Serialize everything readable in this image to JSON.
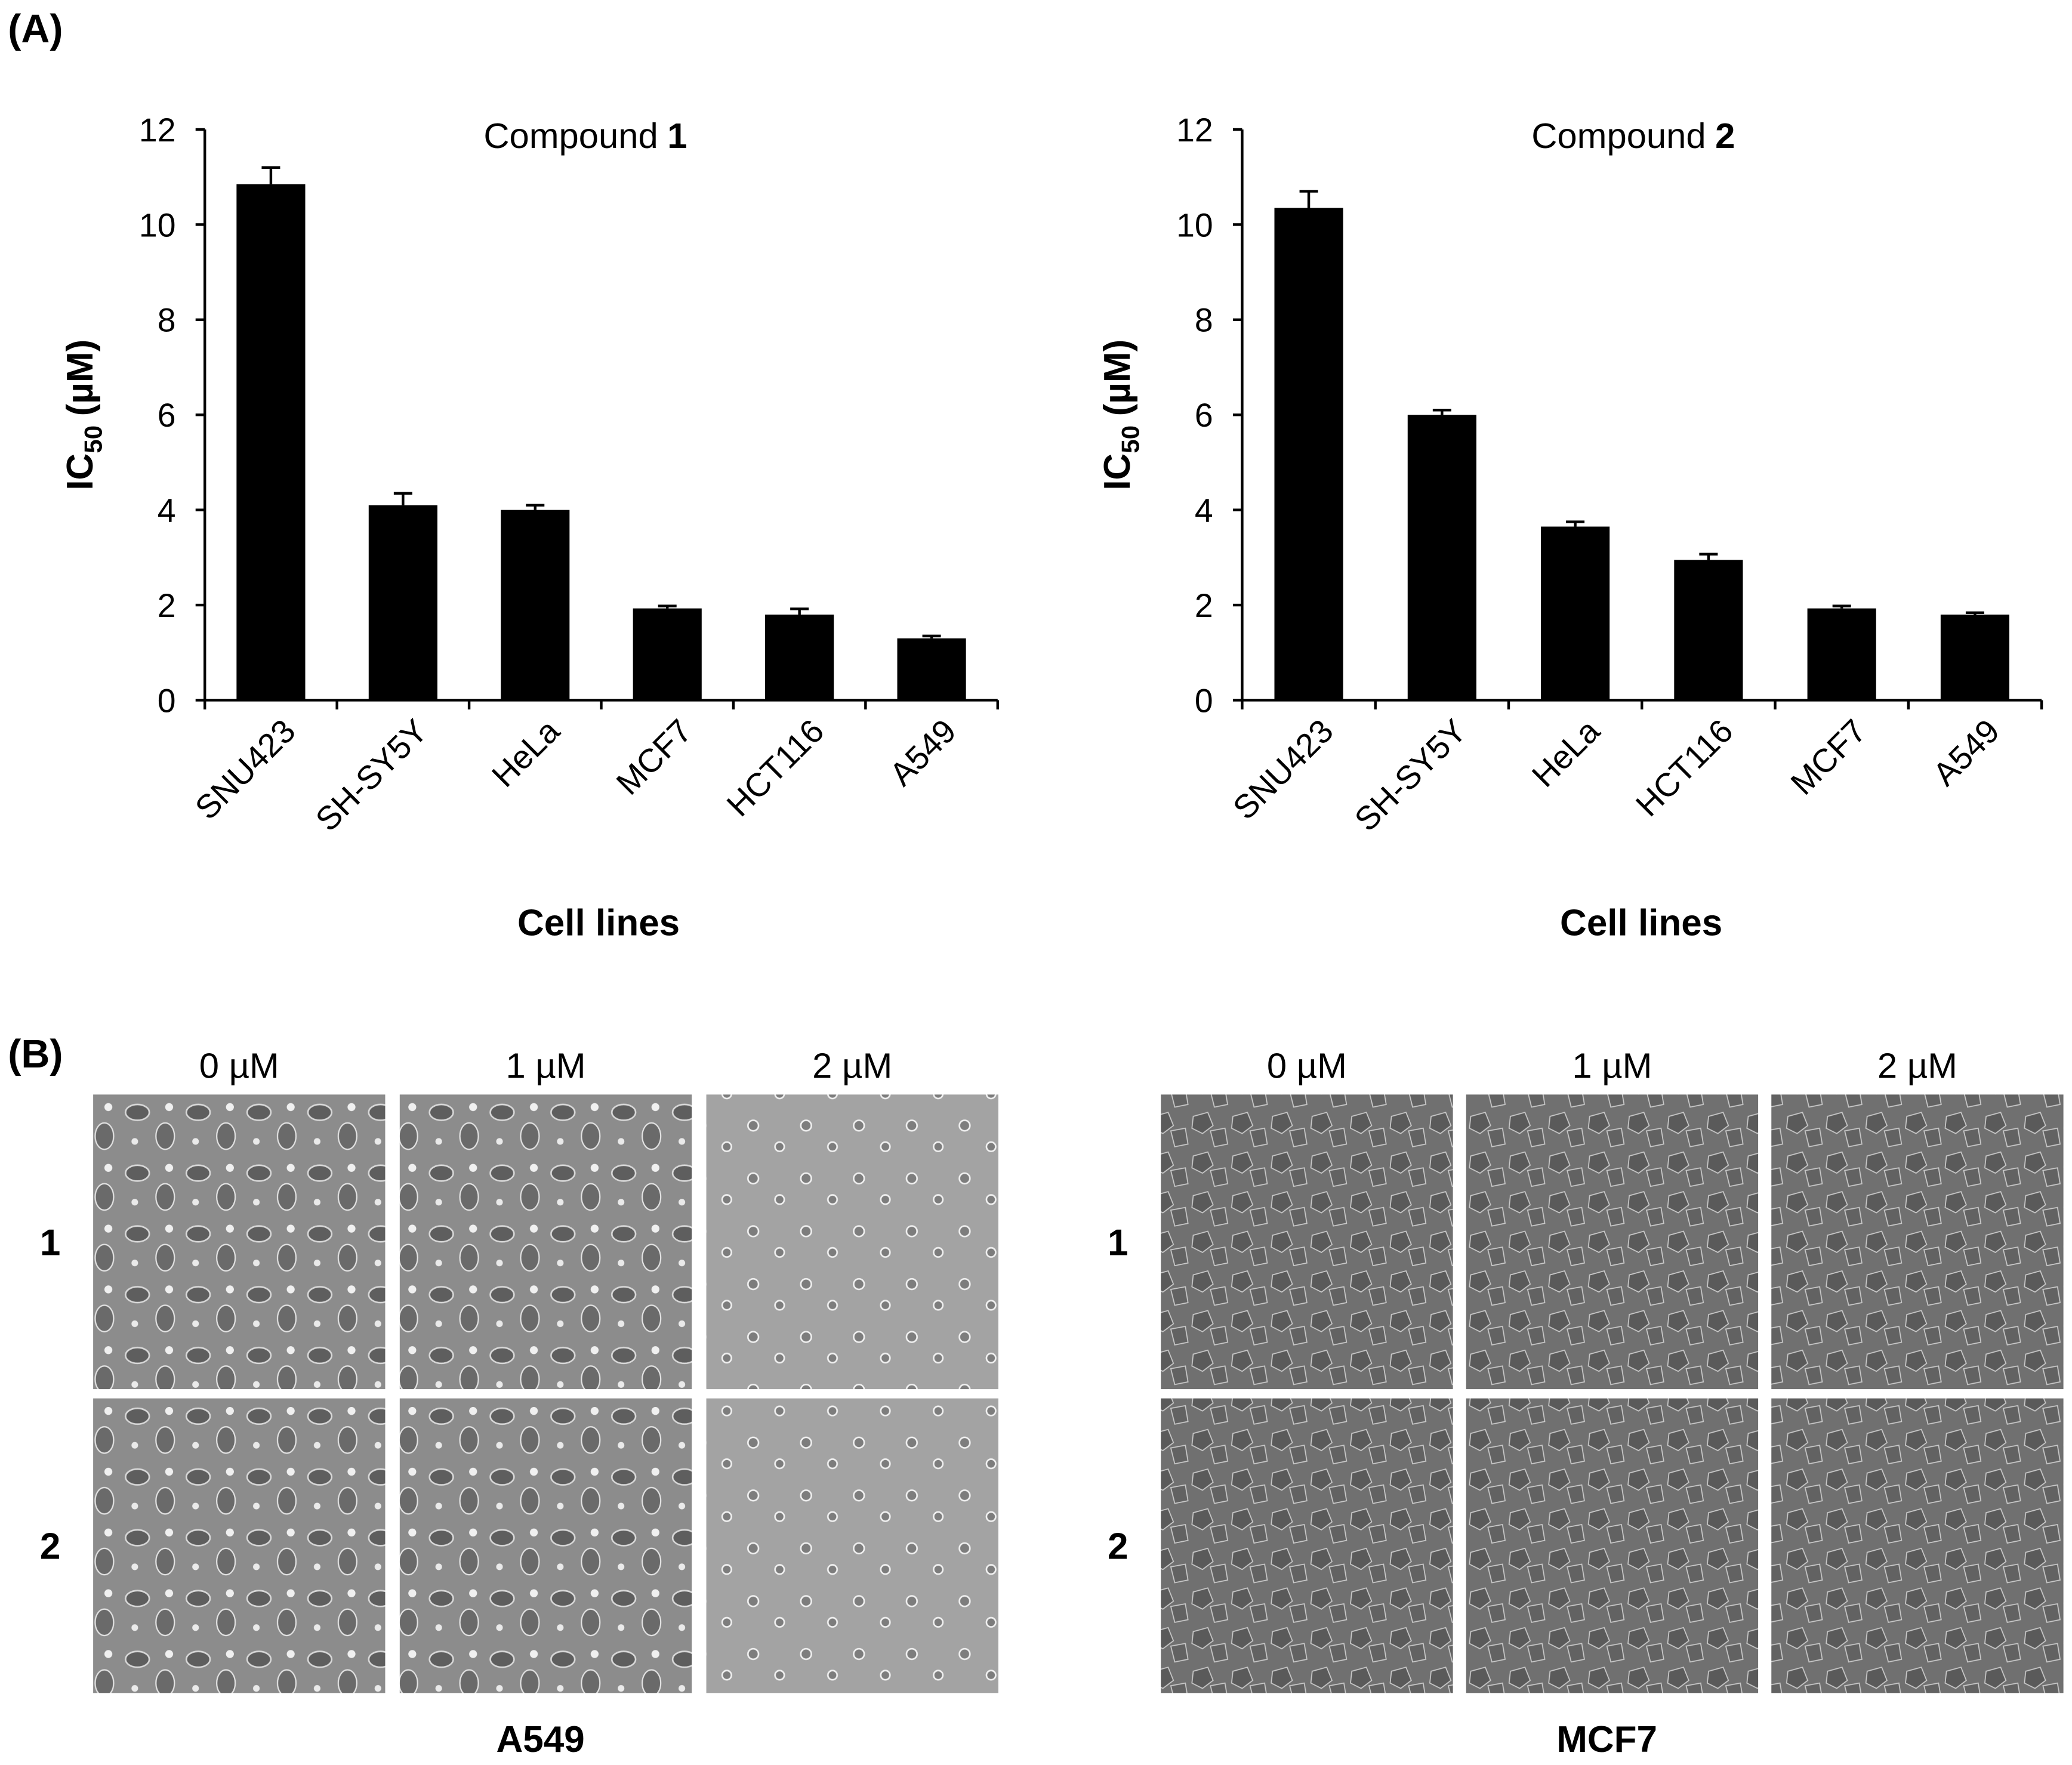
{
  "panel_a_label": "(A)",
  "chart_data": [
    {
      "type": "bar",
      "title": "Compound",
      "title_number": "1",
      "ylabel": {
        "main": "IC",
        "subscript": "50",
        "unit": "(µM)"
      },
      "xlabel": "Cell lines",
      "categories": [
        "SNU423",
        "SH-SY5Y",
        "HeLa",
        "MCF7",
        "HCT116",
        "A549"
      ],
      "values": [
        10.85,
        4.1,
        4.0,
        1.93,
        1.8,
        1.3
      ],
      "errors": [
        0.35,
        0.25,
        0.1,
        0.05,
        0.12,
        0.05
      ],
      "color": "#000000",
      "ylim": [
        0,
        12
      ],
      "yticks": [
        0,
        2,
        4,
        6,
        8,
        10,
        12
      ]
    },
    {
      "type": "bar",
      "title": "Compound",
      "title_number": "2",
      "ylabel": {
        "main": "IC",
        "subscript": "50",
        "unit": "(µM)"
      },
      "xlabel": "Cell lines",
      "categories": [
        "SNU423",
        "SH-SY5Y",
        "HeLa",
        "HCT116",
        "MCF7",
        "A549"
      ],
      "values": [
        10.35,
        6.0,
        3.65,
        2.95,
        1.93,
        1.8
      ],
      "errors": [
        0.35,
        0.1,
        0.1,
        0.12,
        0.05,
        0.04
      ],
      "color": "#000000",
      "ylim": [
        0,
        12
      ],
      "yticks": [
        0,
        2,
        4,
        6,
        8,
        10,
        12
      ]
    }
  ],
  "panel_b": {
    "label": "(B)",
    "groups": [
      {
        "name": "A549",
        "columns": [
          "0 µM",
          "1 µM",
          "2 µM"
        ],
        "rows": [
          "1",
          "2"
        ]
      },
      {
        "name": "MCF7",
        "columns": [
          "0 µM",
          "1 µM",
          "2 µM"
        ],
        "rows": [
          "1",
          "2"
        ]
      }
    ]
  }
}
